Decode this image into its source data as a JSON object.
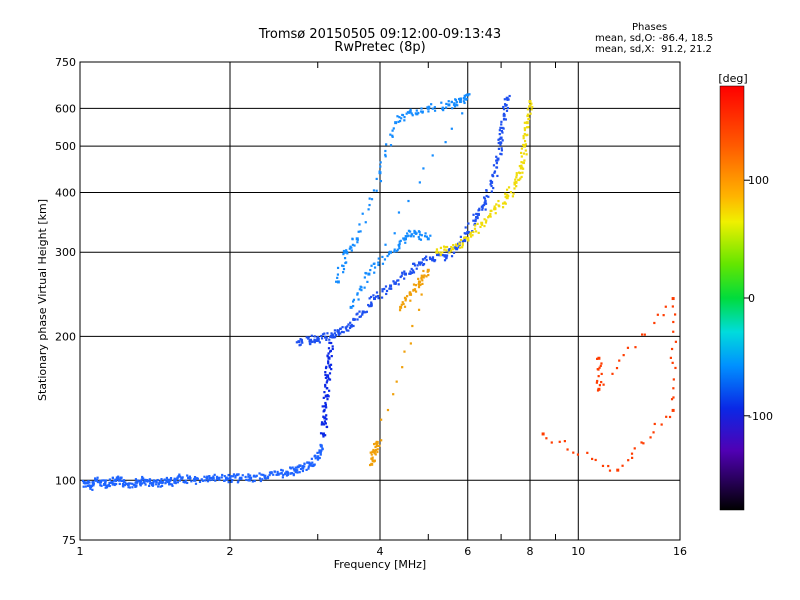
{
  "header": {
    "title_line1": "Tromsø 20150505 09:12:00-09:13:43",
    "title_line2": "RwPretec (8p)",
    "stats_heading": "Phases",
    "stats_o": "mean, sd,O: -86.4, 18.5",
    "stats_x": "mean, sd,X:  91.2, 21.2"
  },
  "colorbar": {
    "title": "[deg]",
    "ticks": [
      {
        "value": 100,
        "label": "100"
      },
      {
        "value": 0,
        "label": "0"
      },
      {
        "value": -100,
        "label": "-100"
      }
    ],
    "range": [
      -180,
      180
    ]
  },
  "chart_data": {
    "type": "scatter",
    "xlabel": "Frequency [MHz]",
    "ylabel": "Stationary phase Virtual Height [km]",
    "xscale": "log",
    "yscale": "log",
    "xlim": [
      1,
      16
    ],
    "ylim": [
      75,
      750
    ],
    "xticks": [
      1,
      2,
      4,
      6,
      8,
      10,
      16
    ],
    "yticks": [
      75,
      100,
      200,
      300,
      400,
      500,
      600,
      750
    ],
    "grid": true,
    "color_variable": "phase [deg]",
    "series": [
      {
        "group": "O-mode low trace",
        "color": "#1e64ff",
        "points": [
          [
            1.02,
            99
          ],
          [
            1.05,
            97
          ],
          [
            1.08,
            100
          ],
          [
            1.12,
            98
          ],
          [
            1.16,
            99
          ],
          [
            1.2,
            100
          ],
          [
            1.25,
            98
          ],
          [
            1.3,
            99
          ],
          [
            1.35,
            100
          ],
          [
            1.4,
            98
          ],
          [
            1.45,
            99
          ],
          [
            1.5,
            100
          ],
          [
            1.55,
            99
          ],
          [
            1.6,
            101
          ],
          [
            1.7,
            100
          ],
          [
            1.8,
            101
          ],
          [
            1.9,
            101
          ],
          [
            2.0,
            101
          ],
          [
            2.1,
            101
          ],
          [
            2.2,
            101
          ],
          [
            2.35,
            102
          ],
          [
            2.5,
            103
          ],
          [
            2.6,
            104
          ],
          [
            2.7,
            105
          ],
          [
            2.8,
            106
          ],
          [
            2.9,
            108
          ],
          [
            3.0,
            112
          ],
          [
            3.05,
            118
          ]
        ]
      },
      {
        "group": "O-mode E-cusp",
        "color": "#0a28e6",
        "points": [
          [
            3.08,
            125
          ],
          [
            3.1,
            135
          ],
          [
            3.12,
            150
          ],
          [
            3.14,
            165
          ],
          [
            3.16,
            180
          ],
          [
            3.2,
            200
          ]
        ]
      },
      {
        "group": "O-mode F2 trace",
        "color": "#1e50f0",
        "points": [
          [
            2.75,
            195
          ],
          [
            2.9,
            196
          ],
          [
            3.0,
            198
          ],
          [
            3.2,
            200
          ],
          [
            3.3,
            205
          ],
          [
            3.5,
            210
          ],
          [
            3.7,
            225
          ],
          [
            3.9,
            240
          ],
          [
            4.2,
            255
          ],
          [
            4.5,
            270
          ],
          [
            4.8,
            285
          ],
          [
            5.1,
            290
          ],
          [
            5.4,
            295
          ],
          [
            5.7,
            305
          ],
          [
            6.0,
            330
          ],
          [
            6.3,
            360
          ],
          [
            6.5,
            380
          ],
          [
            6.7,
            420
          ],
          [
            6.9,
            470
          ],
          [
            7.0,
            520
          ],
          [
            7.1,
            580
          ],
          [
            7.2,
            630
          ]
        ]
      },
      {
        "group": "O-mode upper scatter",
        "color": "#148cff",
        "points": [
          [
            3.3,
            260
          ],
          [
            3.4,
            300
          ],
          [
            3.6,
            320
          ],
          [
            4.0,
            440
          ],
          [
            4.3,
            560
          ],
          [
            4.6,
            590
          ],
          [
            5.0,
            600
          ],
          [
            5.5,
            610
          ],
          [
            5.8,
            620
          ],
          [
            6.0,
            640
          ],
          [
            3.5,
            230
          ],
          [
            3.8,
            270
          ],
          [
            4.2,
            300
          ],
          [
            4.5,
            320
          ],
          [
            4.7,
            330
          ],
          [
            5.0,
            320
          ]
        ]
      },
      {
        "group": "X-mode trace",
        "color": "#f0dc0a",
        "points": [
          [
            5.2,
            300
          ],
          [
            5.6,
            305
          ],
          [
            6.0,
            320
          ],
          [
            6.4,
            345
          ],
          [
            6.8,
            370
          ],
          [
            7.2,
            390
          ],
          [
            7.5,
            420
          ],
          [
            7.7,
            450
          ],
          [
            7.8,
            500
          ],
          [
            7.9,
            560
          ],
          [
            8.0,
            620
          ]
        ]
      },
      {
        "group": "X-mode spread",
        "color": "#f0a00a",
        "points": [
          [
            4.4,
            230
          ],
          [
            4.6,
            245
          ],
          [
            4.8,
            260
          ],
          [
            5.0,
            275
          ],
          [
            3.85,
            108
          ],
          [
            3.9,
            115
          ],
          [
            3.95,
            120
          ]
        ]
      },
      {
        "group": "isolated echoes",
        "color": "#ff3c00",
        "points": [
          [
            11.0,
            180
          ],
          [
            11.0,
            155
          ],
          [
            15.5,
            240
          ],
          [
            15.5,
            140
          ],
          [
            12.0,
            105
          ],
          [
            8.5,
            125
          ]
        ]
      }
    ]
  }
}
